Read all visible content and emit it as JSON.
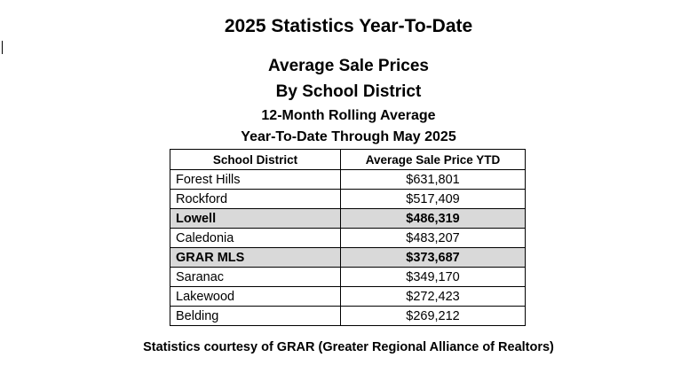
{
  "header": {
    "title": "2025 Statistics Year-To-Date",
    "subtitle_1": "Average Sale Prices",
    "subtitle_2": "By School District",
    "subtitle_3": "12-Month Rolling Average",
    "subtitle_4": "Year-To-Date Through May 2025"
  },
  "table": {
    "columns": [
      "School District",
      "Average Sale Price YTD"
    ],
    "rows": [
      {
        "district": "Forest Hills",
        "price": "$631,801",
        "highlighted": false
      },
      {
        "district": "Rockford",
        "price": "$517,409",
        "highlighted": false
      },
      {
        "district": "Lowell",
        "price": "$486,319",
        "highlighted": true
      },
      {
        "district": "Caledonia",
        "price": "$483,207",
        "highlighted": false
      },
      {
        "district": "GRAR MLS",
        "price": "$373,687",
        "highlighted": true
      },
      {
        "district": "Saranac",
        "price": "$349,170",
        "highlighted": false
      },
      {
        "district": "Lakewood",
        "price": "$272,423",
        "highlighted": false
      },
      {
        "district": "Belding",
        "price": "$269,212",
        "highlighted": false
      }
    ],
    "highlight_color": "#d9d9d9"
  },
  "footer": {
    "note": "Statistics courtesy of GRAR (Greater Regional Alliance of Realtors)"
  }
}
